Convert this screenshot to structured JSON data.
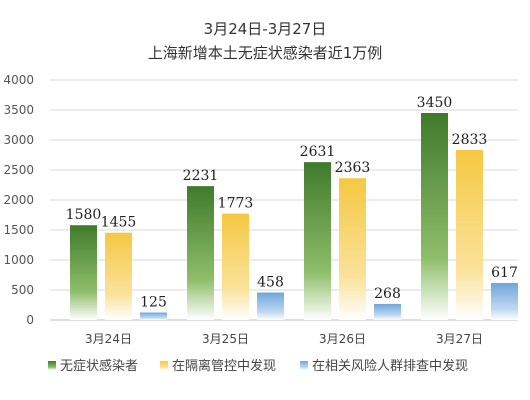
{
  "chart_data": {
    "type": "bar",
    "title": "3月24日-3月27日",
    "subtitle": "上海新增本土无症状感染者近1万例",
    "categories": [
      "3月24日",
      "3月25日",
      "3月26日",
      "3月27日"
    ],
    "series": [
      {
        "name": "无症状感染者",
        "values": [
          1580,
          2231,
          2631,
          3450
        ],
        "color": "#4f8a3a"
      },
      {
        "name": "在隔离管控中发现",
        "values": [
          1455,
          1773,
          2363,
          2833
        ],
        "color": "#f5c842"
      },
      {
        "name": "在相关风险人群排查中发现",
        "values": [
          125,
          458,
          268,
          617
        ],
        "color": "#7fb2e0"
      }
    ],
    "ylim": [
      0,
      4000
    ],
    "yticks": [
      0,
      500,
      1000,
      1500,
      2000,
      2500,
      3000,
      3500,
      4000
    ],
    "grid": true,
    "legend": "bottom"
  }
}
